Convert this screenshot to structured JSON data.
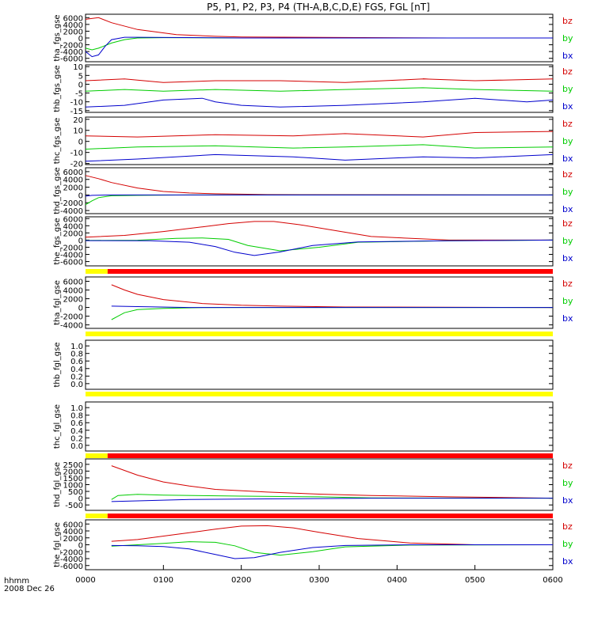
{
  "title": "P5, P1, P2, P3, P4 (TH-A,B,C,D,E) FGS, FGL [nT]",
  "colors": {
    "bz": "#d40000",
    "by": "#00cc00",
    "bx": "#0000cc",
    "flag_yellow": "#ffff00",
    "flag_red": "#ff0000"
  },
  "time_axis": {
    "label_top": "hhmm",
    "label_bottom": "2008 Dec 26",
    "ticks": [
      "0000",
      "0100",
      "0200",
      "0300",
      "0400",
      "0500",
      "0600"
    ],
    "range_min": [
      0,
      360
    ]
  },
  "chart_data": [
    {
      "type": "line",
      "ylabel": "tha_fgs_gse",
      "ylim": [
        -7000,
        7000
      ],
      "yticks": [
        "6000",
        "4000",
        "2000",
        "0",
        "-2000",
        "-4000",
        "-6000"
      ],
      "legend": [
        "bz",
        "by",
        "bx"
      ],
      "series": [
        {
          "name": "bz",
          "x_min": [
            0,
            10,
            20,
            40,
            70,
            100,
            120,
            280,
            360
          ],
          "y": [
            5500,
            6000,
            4500,
            2500,
            1000,
            500,
            300,
            0,
            0
          ]
        },
        {
          "name": "by",
          "x_min": [
            0,
            5,
            10,
            20,
            30,
            40,
            60,
            120,
            360
          ],
          "y": [
            -3000,
            -3500,
            -3000,
            -1500,
            -500,
            0,
            100,
            0,
            0
          ]
        },
        {
          "name": "bx",
          "x_min": [
            0,
            5,
            10,
            15,
            20,
            30,
            40,
            120,
            360
          ],
          "y": [
            -4000,
            -5500,
            -5000,
            -2500,
            -500,
            200,
            200,
            0,
            0
          ]
        }
      ]
    },
    {
      "type": "line",
      "ylabel": "thb_fgs_gse",
      "ylim": [
        -16,
        11
      ],
      "yticks": [
        "10",
        "5",
        "0",
        "-5",
        "-10",
        "-15"
      ],
      "legend": [
        "bz",
        "by",
        "bx"
      ],
      "series": [
        {
          "name": "bz",
          "x_min": [
            0,
            30,
            60,
            100,
            150,
            200,
            260,
            300,
            260,
            300,
            360
          ],
          "y": [
            2,
            3,
            1,
            2,
            2,
            1,
            3,
            2,
            3,
            2,
            3
          ]
        },
        {
          "name": "by",
          "x_min": [
            0,
            30,
            60,
            100,
            150,
            200,
            260,
            300,
            360
          ],
          "y": [
            -4,
            -3,
            -4,
            -3,
            -4,
            -3,
            -2,
            -3,
            -4
          ]
        },
        {
          "name": "bx",
          "x_min": [
            0,
            30,
            60,
            90,
            100,
            120,
            150,
            200,
            260,
            300,
            340,
            360
          ],
          "y": [
            -13,
            -12,
            -9,
            -8,
            -10,
            -12,
            -13,
            -12,
            -10,
            -8,
            -10,
            -9
          ]
        }
      ]
    },
    {
      "type": "line",
      "ylabel": "thc_fgs_gse",
      "ylim": [
        -21,
        22
      ],
      "yticks": [
        "20",
        "10",
        "0",
        "-10",
        "-20"
      ],
      "legend": [
        "bz",
        "by",
        "bx"
      ],
      "series": [
        {
          "name": "bz",
          "x_min": [
            0,
            40,
            100,
            160,
            200,
            260,
            300,
            360
          ],
          "y": [
            5,
            4,
            6,
            5,
            7,
            4,
            8,
            9
          ]
        },
        {
          "name": "by",
          "x_min": [
            0,
            40,
            100,
            160,
            200,
            260,
            300,
            360
          ],
          "y": [
            -7,
            -5,
            -4,
            -6,
            -5,
            -3,
            -6,
            -5
          ]
        },
        {
          "name": "bx",
          "x_min": [
            0,
            40,
            100,
            160,
            200,
            260,
            300,
            360
          ],
          "y": [
            -18,
            -16,
            -12,
            -14,
            -17,
            -14,
            -15,
            -12
          ]
        }
      ]
    },
    {
      "type": "line",
      "ylabel": "thd_fgs_gse",
      "ylim": [
        -4800,
        7000
      ],
      "yticks": [
        "6000",
        "4000",
        "2000",
        "0",
        "-2000",
        "-4000"
      ],
      "legend": [
        "bz",
        "by",
        "bx"
      ],
      "series": [
        {
          "name": "bz",
          "x_min": [
            0,
            10,
            20,
            40,
            60,
            80,
            100,
            140,
            360
          ],
          "y": [
            5000,
            4200,
            3200,
            1800,
            900,
            500,
            300,
            100,
            0
          ]
        },
        {
          "name": "by",
          "x_min": [
            0,
            5,
            10,
            20,
            40,
            80,
            360
          ],
          "y": [
            -2500,
            -1500,
            -700,
            -200,
            -100,
            0,
            0
          ]
        },
        {
          "name": "bx",
          "x_min": [
            0,
            5,
            20,
            80,
            140,
            360
          ],
          "y": [
            -300,
            -100,
            0,
            0,
            0,
            0
          ]
        }
      ]
    },
    {
      "type": "line",
      "ylabel": "the_fgs_gse",
      "ylim": [
        -7200,
        6500
      ],
      "yticks": [
        "6000",
        "4000",
        "2000",
        "0",
        "-2000",
        "-4000",
        "-6000"
      ],
      "legend": [
        "bz",
        "by",
        "bx"
      ],
      "series": [
        {
          "name": "bz",
          "x_min": [
            0,
            30,
            60,
            90,
            110,
            130,
            145,
            165,
            190,
            220,
            280,
            360
          ],
          "y": [
            800,
            1300,
            2400,
            3700,
            4600,
            5200,
            5200,
            4300,
            2800,
            1000,
            0,
            0
          ]
        },
        {
          "name": "by",
          "x_min": [
            0,
            40,
            70,
            90,
            110,
            125,
            150,
            180,
            210,
            280,
            360
          ],
          "y": [
            -100,
            -50,
            500,
            600,
            200,
            -1500,
            -3000,
            -2000,
            -600,
            -200,
            0
          ]
        },
        {
          "name": "bx",
          "x_min": [
            0,
            50,
            80,
            100,
            115,
            130,
            150,
            175,
            210,
            280,
            360
          ],
          "y": [
            -150,
            -200,
            -600,
            -1800,
            -3400,
            -4300,
            -3300,
            -1500,
            -500,
            -200,
            0
          ]
        }
      ]
    },
    {
      "type": "line",
      "ylabel": "tha_fgl_gse",
      "ylim": [
        -4800,
        7000
      ],
      "yticks": [
        "6000",
        "4000",
        "2000",
        "0",
        "-2000",
        "-4000"
      ],
      "legend": [
        "bz",
        "by",
        "bx"
      ],
      "series": [
        {
          "name": "bz",
          "x_min": [
            20,
            30,
            40,
            60,
            90,
            120,
            150,
            200,
            360
          ],
          "y": [
            5200,
            4000,
            3000,
            1800,
            900,
            500,
            300,
            100,
            0
          ]
        },
        {
          "name": "by",
          "x_min": [
            20,
            25,
            30,
            40,
            60,
            90,
            120,
            360
          ],
          "y": [
            -2800,
            -2000,
            -1200,
            -500,
            -200,
            -50,
            0,
            0
          ]
        },
        {
          "name": "bx",
          "x_min": [
            20,
            40,
            80,
            120,
            360
          ],
          "y": [
            300,
            200,
            0,
            0,
            0
          ]
        }
      ]
    },
    {
      "type": "line",
      "ylabel": "thb_fgl_gse",
      "ylim": [
        -0.15,
        1.15
      ],
      "yticks": [
        "1.0",
        "0.8",
        "0.6",
        "0.4",
        "0.2",
        "0.0"
      ],
      "legend": [],
      "series": []
    },
    {
      "type": "line",
      "ylabel": "thc_fgl_gse",
      "ylim": [
        -0.15,
        1.15
      ],
      "yticks": [
        "1.0",
        "0.8",
        "0.6",
        "0.4",
        "0.2",
        "0.0"
      ],
      "legend": [],
      "series": []
    },
    {
      "type": "line",
      "ylabel": "thd_fgl_gse",
      "ylim": [
        -900,
        2900
      ],
      "yticks": [
        "2500",
        "2000",
        "1500",
        "1000",
        "500",
        "0",
        "-500"
      ],
      "legend": [
        "bz",
        "by",
        "bx"
      ],
      "series": [
        {
          "name": "bz",
          "x_min": [
            20,
            40,
            60,
            80,
            100,
            140,
            180,
            220,
            280,
            360
          ],
          "y": [
            2400,
            1700,
            1200,
            900,
            650,
            450,
            300,
            200,
            100,
            0
          ]
        },
        {
          "name": "by",
          "x_min": [
            20,
            25,
            40,
            60,
            120,
            180,
            220,
            360
          ],
          "y": [
            -100,
            200,
            280,
            220,
            150,
            100,
            20,
            0
          ]
        },
        {
          "name": "bx",
          "x_min": [
            20,
            40,
            80,
            140,
            220,
            360
          ],
          "y": [
            -250,
            -200,
            -100,
            -50,
            0,
            0
          ]
        }
      ]
    },
    {
      "type": "line",
      "ylabel": "the_fgl_gse",
      "ylim": [
        -7200,
        7200
      ],
      "yticks": [
        "6000",
        "4000",
        "2000",
        "0",
        "-2000",
        "-4000",
        "-6000"
      ],
      "legend": [
        "bz",
        "by",
        "bx"
      ],
      "series": [
        {
          "name": "bz",
          "x_min": [
            20,
            40,
            70,
            100,
            120,
            140,
            160,
            180,
            210,
            250,
            300,
            360
          ],
          "y": [
            1000,
            1500,
            3000,
            4500,
            5400,
            5500,
            4900,
            3600,
            1800,
            500,
            0,
            0
          ]
        },
        {
          "name": "by",
          "x_min": [
            20,
            40,
            60,
            80,
            100,
            115,
            130,
            150,
            175,
            200,
            250,
            360
          ],
          "y": [
            -400,
            0,
            400,
            900,
            700,
            -300,
            -2200,
            -3000,
            -2000,
            -600,
            -100,
            0
          ]
        },
        {
          "name": "bx",
          "x_min": [
            20,
            40,
            60,
            80,
            100,
            115,
            130,
            150,
            175,
            200,
            250,
            360
          ],
          "y": [
            -200,
            -300,
            -500,
            -1200,
            -2800,
            -4000,
            -3700,
            -2200,
            -800,
            -200,
            0,
            0
          ]
        }
      ]
    }
  ],
  "flag_bars": [
    {
      "segments": [
        {
          "color": "yellow",
          "from_min": 0,
          "to_min": 17
        },
        {
          "color": "red",
          "from_min": 17,
          "to_min": 360
        }
      ]
    },
    {
      "segments": [
        {
          "color": "yellow",
          "from_min": 0,
          "to_min": 360
        }
      ]
    },
    {
      "segments": [
        {
          "color": "yellow",
          "from_min": 0,
          "to_min": 360
        }
      ]
    },
    {
      "segments": [
        {
          "color": "yellow",
          "from_min": 0,
          "to_min": 17
        },
        {
          "color": "red",
          "from_min": 17,
          "to_min": 360
        }
      ]
    },
    {
      "segments": [
        {
          "color": "yellow",
          "from_min": 0,
          "to_min": 17
        },
        {
          "color": "red",
          "from_min": 17,
          "to_min": 360
        }
      ]
    }
  ]
}
